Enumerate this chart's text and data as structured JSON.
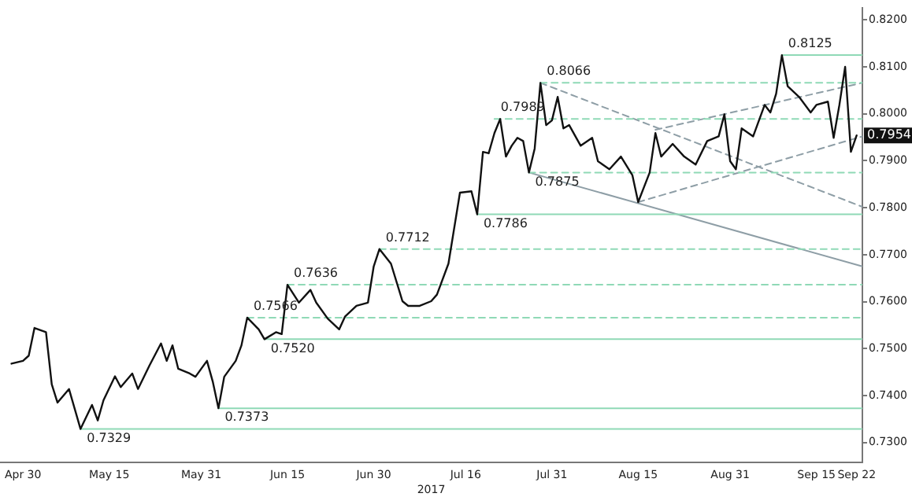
{
  "chart_data": {
    "type": "line",
    "xlabel": "2017",
    "x": [
      "2017-04-28",
      "2017-04-30",
      "2017-05-01",
      "2017-05-02",
      "2017-05-04",
      "2017-05-05",
      "2017-05-06",
      "2017-05-08",
      "2017-05-10",
      "2017-05-12",
      "2017-05-13",
      "2017-05-14",
      "2017-05-16",
      "2017-05-17",
      "2017-05-19",
      "2017-05-20",
      "2017-05-22",
      "2017-05-24",
      "2017-05-25",
      "2017-05-26",
      "2017-05-27",
      "2017-05-29",
      "2017-05-30",
      "2017-06-01",
      "2017-06-02",
      "2017-06-03",
      "2017-06-04",
      "2017-06-06",
      "2017-06-07",
      "2017-06-08",
      "2017-06-10",
      "2017-06-11",
      "2017-06-13",
      "2017-06-14",
      "2017-06-15",
      "2017-06-17",
      "2017-06-19",
      "2017-06-20",
      "2017-06-22",
      "2017-06-24",
      "2017-06-25",
      "2017-06-27",
      "2017-06-29",
      "2017-06-30",
      "2017-07-01",
      "2017-07-03",
      "2017-07-05",
      "2017-07-06",
      "2017-07-08",
      "2017-07-10",
      "2017-07-11",
      "2017-07-13",
      "2017-07-15",
      "2017-07-17",
      "2017-07-18",
      "2017-07-19",
      "2017-07-20",
      "2017-07-21",
      "2017-07-22",
      "2017-07-23",
      "2017-07-24",
      "2017-07-25",
      "2017-07-26",
      "2017-07-27",
      "2017-07-28",
      "2017-07-29",
      "2017-07-30",
      "2017-07-31",
      "2017-08-01",
      "2017-08-02",
      "2017-08-03",
      "2017-08-05",
      "2017-08-07",
      "2017-08-08",
      "2017-08-10",
      "2017-08-12",
      "2017-08-14",
      "2017-08-15",
      "2017-08-17",
      "2017-08-18",
      "2017-08-19",
      "2017-08-21",
      "2017-08-23",
      "2017-08-25",
      "2017-08-27",
      "2017-08-29",
      "2017-08-30",
      "2017-08-31",
      "2017-09-01",
      "2017-09-02",
      "2017-09-04",
      "2017-09-06",
      "2017-09-07",
      "2017-09-08",
      "2017-09-09",
      "2017-09-10",
      "2017-09-12",
      "2017-09-14",
      "2017-09-15",
      "2017-09-17",
      "2017-09-18",
      "2017-09-19",
      "2017-09-20",
      "2017-09-21",
      "2017-09-22"
    ],
    "series": [
      {
        "color": "#111111",
        "values": [
          0.7468,
          0.7474,
          0.7485,
          0.7544,
          0.7535,
          0.7424,
          0.7385,
          0.7414,
          0.7329,
          0.738,
          0.7347,
          0.739,
          0.7441,
          0.7418,
          0.7447,
          0.7414,
          0.7464,
          0.7511,
          0.7474,
          0.7507,
          0.7457,
          0.7447,
          0.744,
          0.7474,
          0.743,
          0.7373,
          0.744,
          0.7474,
          0.7507,
          0.7566,
          0.7541,
          0.752,
          0.7535,
          0.7531,
          0.7636,
          0.7598,
          0.7625,
          0.7598,
          0.7564,
          0.7541,
          0.7568,
          0.7591,
          0.7598,
          0.7675,
          0.7712,
          0.7681,
          0.7601,
          0.7591,
          0.7591,
          0.7601,
          0.7615,
          0.7681,
          0.7832,
          0.7835,
          0.7786,
          0.7919,
          0.7916,
          0.7959,
          0.7989,
          0.7909,
          0.7932,
          0.7949,
          0.7942,
          0.7875,
          0.7926,
          0.8066,
          0.7976,
          0.7986,
          0.8036,
          0.7969,
          0.7976,
          0.7932,
          0.7949,
          0.7899,
          0.7882,
          0.7909,
          0.7869,
          0.7812,
          0.7875,
          0.7959,
          0.7909,
          0.7936,
          0.7909,
          0.7892,
          0.7942,
          0.7952,
          0.7999,
          0.7899,
          0.7882,
          0.7969,
          0.7952,
          0.8019,
          0.8003,
          0.8043,
          0.8125,
          0.8059,
          0.8036,
          0.8003,
          0.8019,
          0.8026,
          0.7949,
          0.8019,
          0.81,
          0.7919,
          0.7954
        ]
      },
      {
        "color": "#8fd9b6",
        "line_style": "solid",
        "x": [
          "2017-05-10",
          "2017-09-23"
        ],
        "values": [
          0.7329,
          0.7329
        ]
      },
      {
        "color": "#8fd9b6",
        "line_style": "solid",
        "x": [
          "2017-06-03",
          "2017-09-23"
        ],
        "values": [
          0.7373,
          0.7373
        ]
      },
      {
        "color": "#8fd9b6",
        "line_style": "solid",
        "x": [
          "2017-06-11",
          "2017-09-23"
        ],
        "values": [
          0.752,
          0.752
        ]
      },
      {
        "color": "#8fd9b6",
        "line_style": "dashed",
        "x": [
          "2017-06-08",
          "2017-09-23"
        ],
        "values": [
          0.7566,
          0.7566
        ]
      },
      {
        "color": "#8fd9b6",
        "line_style": "dashed",
        "x": [
          "2017-06-15",
          "2017-09-23"
        ],
        "values": [
          0.7636,
          0.7636
        ]
      },
      {
        "color": "#8fd9b6",
        "line_style": "dashed",
        "x": [
          "2017-07-01",
          "2017-09-23"
        ],
        "values": [
          0.7712,
          0.7712
        ]
      },
      {
        "color": "#8fd9b6",
        "line_style": "solid",
        "x": [
          "2017-07-18",
          "2017-09-23"
        ],
        "values": [
          0.7786,
          0.7786
        ]
      },
      {
        "color": "#8fd9b6",
        "line_style": "dashed",
        "x": [
          "2017-07-27",
          "2017-09-23"
        ],
        "values": [
          0.7875,
          0.7875
        ]
      },
      {
        "color": "#8fd9b6",
        "line_style": "dashed",
        "x": [
          "2017-07-21",
          "2017-09-23"
        ],
        "values": [
          0.7989,
          0.7989
        ]
      },
      {
        "color": "#8fd9b6",
        "line_style": "dashed",
        "x": [
          "2017-07-29",
          "2017-09-23"
        ],
        "values": [
          0.8066,
          0.8066
        ]
      },
      {
        "color": "#8fd9b6",
        "line_style": "solid",
        "x": [
          "2017-09-09",
          "2017-09-23"
        ],
        "values": [
          0.8125,
          0.8125
        ]
      },
      {
        "color": "#8e9ea6",
        "line_style": "solid",
        "x": [
          "2017-07-27",
          "2017-09-23"
        ],
        "values": [
          0.7875,
          0.7675
        ]
      },
      {
        "color": "#8e9ea6",
        "line_style": "dashed",
        "x": [
          "2017-07-29",
          "2017-09-23"
        ],
        "values": [
          0.8066,
          0.7802
        ]
      },
      {
        "color": "#8e9ea6",
        "line_style": "dashed",
        "x": [
          "2017-08-15",
          "2017-09-23"
        ],
        "values": [
          0.7812,
          0.7952
        ]
      },
      {
        "color": "#8e9ea6",
        "line_style": "dashed",
        "x": [
          "2017-08-18",
          "2017-09-23"
        ],
        "values": [
          0.7966,
          0.8066
        ]
      }
    ],
    "annotations": [
      {
        "text": "0.7329",
        "x": "2017-05-10",
        "y": 0.7329
      },
      {
        "text": "0.7373",
        "x": "2017-06-03",
        "y": 0.7373
      },
      {
        "text": "0.7566",
        "x": "2017-06-08",
        "y": 0.7566
      },
      {
        "text": "0.7520",
        "x": "2017-06-11",
        "y": 0.752
      },
      {
        "text": "0.7636",
        "x": "2017-06-15",
        "y": 0.7636
      },
      {
        "text": "0.7712",
        "x": "2017-07-01",
        "y": 0.7712
      },
      {
        "text": "0.7786",
        "x": "2017-07-18",
        "y": 0.7786
      },
      {
        "text": "0.7989",
        "x": "2017-07-21",
        "y": 0.7989
      },
      {
        "text": "0.7875",
        "x": "2017-07-27",
        "y": 0.7875
      },
      {
        "text": "0.8066",
        "x": "2017-07-29",
        "y": 0.8066
      },
      {
        "text": "0.8125",
        "x": "2017-09-09",
        "y": 0.8125
      },
      {
        "text": "0.7954",
        "x": "2017-09-22",
        "y": 0.7954
      }
    ],
    "xlim": [
      "2017-04-26",
      "2017-09-23"
    ],
    "xticks": [
      {
        "value": "2017-04-30",
        "label": "Apr 30"
      },
      {
        "value": "2017-05-15",
        "label": "May 15"
      },
      {
        "value": "2017-05-31",
        "label": "May 31"
      },
      {
        "value": "2017-06-15",
        "label": "Jun 15"
      },
      {
        "value": "2017-06-30",
        "label": "Jun 30"
      },
      {
        "value": "2017-07-16",
        "label": "Jul 16"
      },
      {
        "value": "2017-07-31",
        "label": "Jul 31"
      },
      {
        "value": "2017-08-15",
        "label": "Aug 15"
      },
      {
        "value": "2017-08-31",
        "label": "Aug 31"
      },
      {
        "value": "2017-09-15",
        "label": "Sep 15"
      },
      {
        "value": "2017-09-22",
        "label": "Sep 22"
      }
    ],
    "ylim": [
      0.7257,
      0.8225
    ],
    "yticks": [
      {
        "value": 0.73,
        "label": "0.7300"
      },
      {
        "value": 0.74,
        "label": "0.7400"
      },
      {
        "value": 0.75,
        "label": "0.7500"
      },
      {
        "value": 0.76,
        "label": "0.7600"
      },
      {
        "value": 0.77,
        "label": "0.7700"
      },
      {
        "value": 0.78,
        "label": "0.7800"
      },
      {
        "value": 0.79,
        "label": "0.7900"
      },
      {
        "value": 0.8,
        "label": "0.8000"
      },
      {
        "value": 0.81,
        "label": "0.8100"
      },
      {
        "value": 0.82,
        "label": "0.8200"
      }
    ]
  }
}
